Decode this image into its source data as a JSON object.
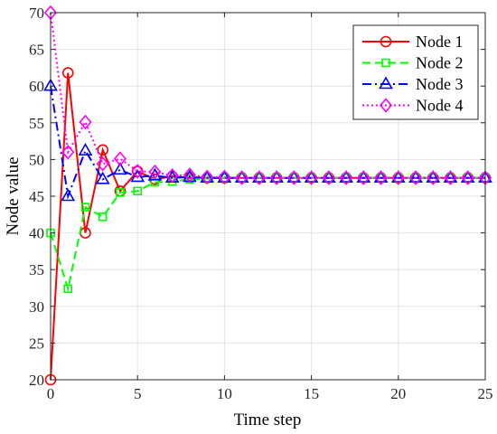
{
  "chart_data": {
    "type": "line",
    "title": "",
    "xlabel": "Time step",
    "ylabel": "Node value",
    "xlim": [
      0,
      25
    ],
    "ylim": [
      20,
      70
    ],
    "xticks": [
      0,
      5,
      10,
      15,
      20,
      25
    ],
    "yticks": [
      20,
      25,
      30,
      35,
      40,
      45,
      50,
      55,
      60,
      65,
      70
    ],
    "grid": true,
    "legend_position": "top-right",
    "x": [
      0,
      1,
      2,
      3,
      4,
      5,
      6,
      7,
      8,
      9,
      10,
      11,
      12,
      13,
      14,
      15,
      16,
      17,
      18,
      19,
      20,
      21,
      22,
      23,
      24,
      25
    ],
    "series": [
      {
        "name": "Node 1",
        "color": "#ff0000",
        "line_style": "solid",
        "marker": "circle",
        "values": [
          20,
          61.8,
          40.0,
          51.3,
          45.7,
          48.4,
          47.3,
          47.7,
          47.5,
          47.5,
          47.5,
          47.5,
          47.5,
          47.5,
          47.5,
          47.5,
          47.5,
          47.5,
          47.5,
          47.5,
          47.5,
          47.5,
          47.5,
          47.5,
          47.5,
          47.5
        ]
      },
      {
        "name": "Node 2",
        "color": "#00ff00",
        "line_style": "dashed",
        "marker": "square",
        "values": [
          40,
          32.4,
          43.5,
          42.2,
          45.5,
          45.7,
          46.9,
          47.0,
          47.3,
          47.4,
          47.5,
          47.5,
          47.5,
          47.5,
          47.5,
          47.5,
          47.5,
          47.5,
          47.5,
          47.5,
          47.5,
          47.5,
          47.5,
          47.5,
          47.5,
          47.5
        ]
      },
      {
        "name": "Node 3",
        "color": "#0000ff",
        "line_style": "dashdot",
        "marker": "triangle",
        "values": [
          60,
          45.0,
          51.2,
          47.3,
          48.6,
          47.6,
          47.8,
          47.5,
          47.6,
          47.5,
          47.5,
          47.5,
          47.5,
          47.5,
          47.5,
          47.5,
          47.5,
          47.5,
          47.5,
          47.5,
          47.5,
          47.5,
          47.5,
          47.5,
          47.5,
          47.5
        ]
      },
      {
        "name": "Node 4",
        "color": "#ff00ff",
        "line_style": "dotted",
        "marker": "diamond",
        "values": [
          70,
          51.0,
          55.1,
          49.4,
          50.1,
          48.4,
          48.3,
          47.8,
          47.9,
          47.6,
          47.6,
          47.5,
          47.5,
          47.5,
          47.5,
          47.5,
          47.5,
          47.5,
          47.5,
          47.5,
          47.5,
          47.5,
          47.5,
          47.5,
          47.5,
          47.5
        ]
      }
    ]
  }
}
